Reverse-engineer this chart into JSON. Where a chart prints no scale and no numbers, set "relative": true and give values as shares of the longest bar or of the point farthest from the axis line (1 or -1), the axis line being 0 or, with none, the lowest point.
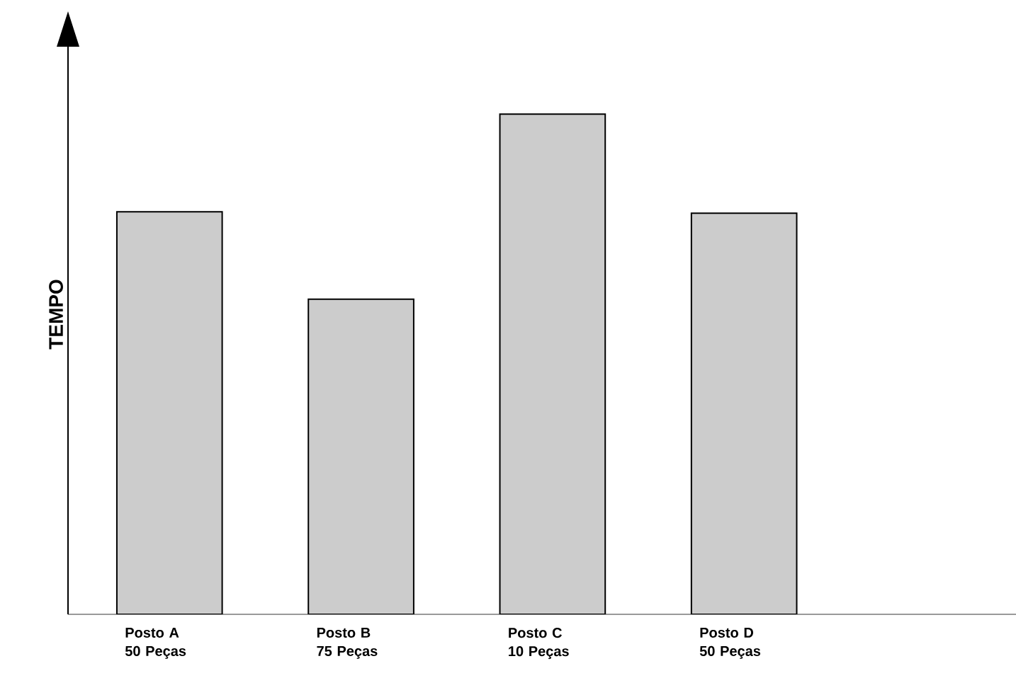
{
  "chart_data": {
    "type": "bar",
    "relative": true,
    "ylabel": "TEMPO",
    "color": "#cccccc",
    "categories": [
      "Posto A 50 Peças",
      "Posto B 75 Peças",
      "Posto C 10 Peças",
      "Posto D 50 Peças"
    ],
    "values": [
      0.805,
      0.63,
      1,
      0.802
    ]
  }
}
